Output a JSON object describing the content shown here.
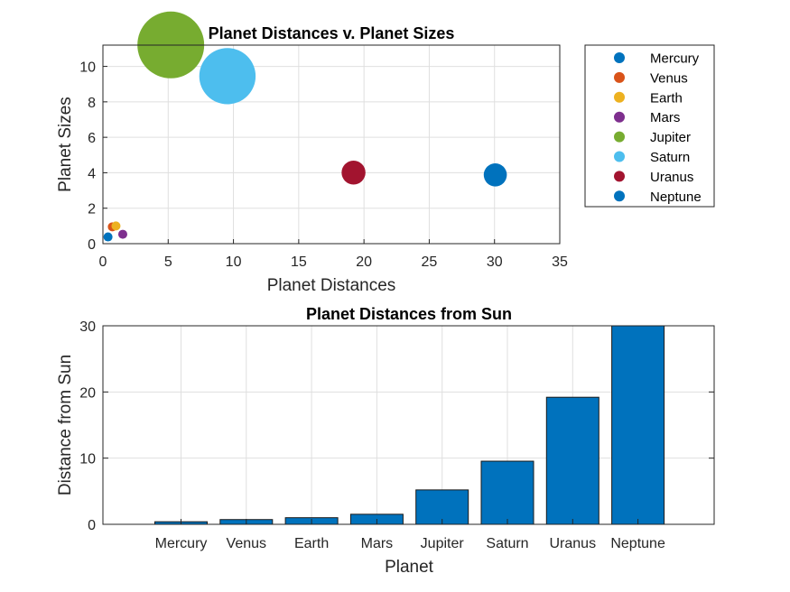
{
  "chart_data": [
    {
      "type": "scatter",
      "title": "Planet Distances v. Planet Sizes",
      "xlabel": "Planet Distances",
      "ylabel": "Planet Sizes",
      "xlim": [
        0,
        35
      ],
      "ylim": [
        0,
        11.2
      ],
      "xticks": [
        "0",
        "5",
        "10",
        "15",
        "20",
        "25",
        "30",
        "35"
      ],
      "yticks": [
        "0",
        "2",
        "4",
        "6",
        "8",
        "10"
      ],
      "grid": true,
      "legend_position": "outside-top-right",
      "series": [
        {
          "name": "Mercury",
          "x": 0.39,
          "y": 0.38,
          "color": "#0072BD"
        },
        {
          "name": "Venus",
          "x": 0.72,
          "y": 0.95,
          "color": "#D95319"
        },
        {
          "name": "Earth",
          "x": 1.0,
          "y": 1.0,
          "color": "#EDB120"
        },
        {
          "name": "Mars",
          "x": 1.52,
          "y": 0.53,
          "color": "#7E2F8E"
        },
        {
          "name": "Jupiter",
          "x": 5.2,
          "y": 11.21,
          "color": "#77AC30"
        },
        {
          "name": "Saturn",
          "x": 9.54,
          "y": 9.45,
          "color": "#4DBEEE"
        },
        {
          "name": "Uranus",
          "x": 19.2,
          "y": 4.01,
          "color": "#A2142F"
        },
        {
          "name": "Neptune",
          "x": 30.06,
          "y": 3.88,
          "color": "#0072BD"
        }
      ]
    },
    {
      "type": "bar",
      "title": "Planet Distances from Sun",
      "xlabel": "Planet",
      "ylabel": "Distance from Sun",
      "ylim": [
        0,
        30
      ],
      "yticks": [
        "0",
        "10",
        "20",
        "30"
      ],
      "grid": true,
      "color": "#0072BD",
      "categories": [
        "Mercury",
        "Venus",
        "Earth",
        "Mars",
        "Jupiter",
        "Saturn",
        "Uranus",
        "Neptune"
      ],
      "values": [
        0.39,
        0.72,
        1.0,
        1.52,
        5.2,
        9.54,
        19.2,
        30.06
      ]
    }
  ]
}
